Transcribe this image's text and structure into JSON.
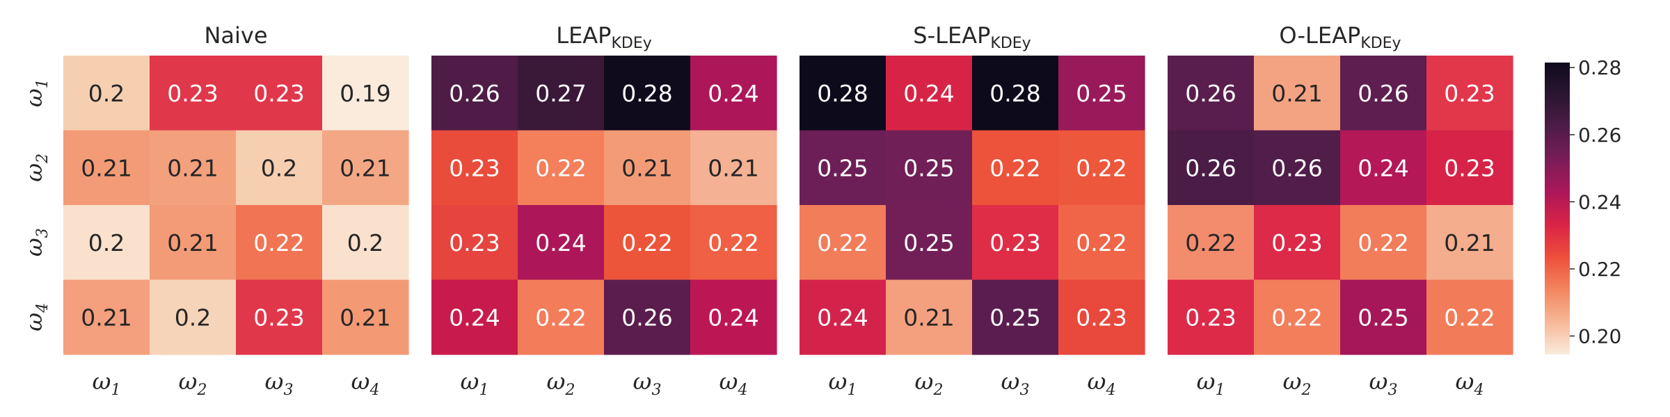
{
  "chart_data": [
    {
      "type": "heatmap",
      "title": "Naive",
      "title_sub": "",
      "x_tick_labels": [
        [
          "ω",
          "1"
        ],
        [
          "ω",
          "2"
        ],
        [
          "ω",
          "3"
        ],
        [
          "ω",
          "4"
        ]
      ],
      "y_tick_labels": [
        [
          "ω",
          "1"
        ],
        [
          "ω",
          "2"
        ],
        [
          "ω",
          "3"
        ],
        [
          "ω",
          "4"
        ]
      ],
      "show_y_ticks": true,
      "values": [
        [
          0.2,
          0.23,
          0.23,
          0.19
        ],
        [
          0.21,
          0.21,
          0.2,
          0.21
        ],
        [
          0.2,
          0.21,
          0.22,
          0.2
        ],
        [
          0.21,
          0.2,
          0.23,
          0.21
        ]
      ],
      "colors": [
        [
          "#f6cfb1",
          "#e1374b",
          "#e1374b",
          "#faebdd"
        ],
        [
          "#f39b76",
          "#f3a07d",
          "#f6cfb1",
          "#f4a785"
        ],
        [
          "#f9e1cd",
          "#f39b76",
          "#f17554",
          "#f9e1cd"
        ],
        [
          "#f49f7d",
          "#f6d4b9",
          "#e1374b",
          "#f39a75"
        ]
      ]
    },
    {
      "type": "heatmap",
      "title": "LEAP",
      "title_sub": "KDEy",
      "x_tick_labels": [
        [
          "ω",
          "1"
        ],
        [
          "ω",
          "2"
        ],
        [
          "ω",
          "3"
        ],
        [
          "ω",
          "4"
        ]
      ],
      "y_tick_labels": [],
      "show_y_ticks": false,
      "values": [
        [
          0.26,
          0.27,
          0.28,
          0.24
        ],
        [
          0.23,
          0.22,
          0.21,
          0.21
        ],
        [
          0.23,
          0.24,
          0.22,
          0.22
        ],
        [
          0.24,
          0.22,
          0.26,
          0.24
        ]
      ],
      "colors": [
        [
          "#4e1c47",
          "#3a1838",
          "#0f0b1d",
          "#ad1759"
        ],
        [
          "#ea4c3c",
          "#f37f5b",
          "#f39b76",
          "#f4b193"
        ],
        [
          "#e6443e",
          "#ad1759",
          "#ec553a",
          "#f06044"
        ],
        [
          "#c81b4b",
          "#f37d5a",
          "#5b1d4d",
          "#bd1655"
        ]
      ]
    },
    {
      "type": "heatmap",
      "title": "S-LEAP",
      "title_sub": "KDEy",
      "x_tick_labels": [
        [
          "ω",
          "1"
        ],
        [
          "ω",
          "2"
        ],
        [
          "ω",
          "3"
        ],
        [
          "ω",
          "4"
        ]
      ],
      "y_tick_labels": [],
      "show_y_ticks": false,
      "values": [
        [
          0.28,
          0.24,
          0.28,
          0.25
        ],
        [
          0.25,
          0.25,
          0.22,
          0.22
        ],
        [
          0.22,
          0.25,
          0.23,
          0.22
        ],
        [
          0.24,
          0.21,
          0.25,
          0.23
        ]
      ],
      "colors": [
        [
          "#0d0a1c",
          "#d72446",
          "#0d0a1c",
          "#991a5b"
        ],
        [
          "#6c1f56",
          "#701f57",
          "#ec533a",
          "#ed573b"
        ],
        [
          "#f27d5a",
          "#721f57",
          "#df2d47",
          "#f06547"
        ],
        [
          "#d4234a",
          "#f4a07e",
          "#5b1d4f",
          "#e9483d"
        ]
      ]
    },
    {
      "type": "heatmap",
      "title": "O-LEAP",
      "title_sub": "KDEy",
      "x_tick_labels": [
        [
          "ω",
          "1"
        ],
        [
          "ω",
          "2"
        ],
        [
          "ω",
          "3"
        ],
        [
          "ω",
          "4"
        ]
      ],
      "y_tick_labels": [],
      "show_y_ticks": false,
      "values": [
        [
          0.26,
          0.21,
          0.26,
          0.23
        ],
        [
          0.26,
          0.26,
          0.24,
          0.23
        ],
        [
          0.22,
          0.23,
          0.22,
          0.21
        ],
        [
          0.23,
          0.22,
          0.25,
          0.22
        ]
      ],
      "colors": [
        [
          "#5a1e4e",
          "#f4a382",
          "#5e1e50",
          "#e2364b"
        ],
        [
          "#4a1c46",
          "#511d49",
          "#b41857",
          "#d72347"
        ],
        [
          "#f38c6c",
          "#dc2a48",
          "#f27d5a",
          "#f4ad8d"
        ],
        [
          "#dc2a48",
          "#f27e5b",
          "#a51759",
          "#f27c59"
        ]
      ]
    }
  ],
  "colorbar": {
    "tick_labels": [
      "0.28",
      "0.26",
      "0.24",
      "0.22",
      "0.20"
    ],
    "tick_values": [
      0.28,
      0.26,
      0.24,
      0.22,
      0.2
    ],
    "range": [
      0.1945,
      0.2815
    ],
    "gradient": [
      "#faebdd",
      "#f6b897",
      "#f3855f",
      "#ee4f3c",
      "#d92446",
      "#ad1759",
      "#7a1d58",
      "#4e1c47",
      "#2b1631",
      "#0e0a1c"
    ]
  }
}
